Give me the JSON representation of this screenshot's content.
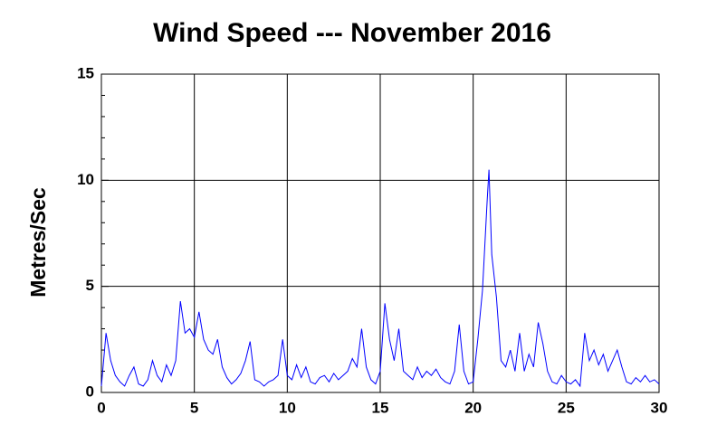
{
  "chart_data": {
    "type": "line",
    "title": "Wind Speed --- November 2016",
    "ylabel": "Metres/Sec",
    "x": [
      0,
      0.25,
      0.5,
      0.75,
      1,
      1.25,
      1.5,
      1.75,
      2,
      2.25,
      2.5,
      2.75,
      3,
      3.25,
      3.5,
      3.75,
      4,
      4.25,
      4.5,
      4.75,
      5,
      5.25,
      5.5,
      5.75,
      6,
      6.25,
      6.5,
      6.75,
      7,
      7.25,
      7.5,
      7.75,
      8,
      8.25,
      8.5,
      8.75,
      9,
      9.25,
      9.5,
      9.75,
      10,
      10.25,
      10.5,
      10.75,
      11,
      11.25,
      11.5,
      11.75,
      12,
      12.25,
      12.5,
      12.75,
      13,
      13.25,
      13.5,
      13.75,
      14,
      14.25,
      14.5,
      14.75,
      15,
      15.25,
      15.5,
      15.75,
      16,
      16.25,
      16.5,
      16.75,
      17,
      17.25,
      17.5,
      17.75,
      18,
      18.25,
      18.5,
      18.75,
      19,
      19.25,
      19.5,
      19.75,
      20,
      20.25,
      20.5,
      20.75,
      20.85,
      21,
      21.25,
      21.5,
      21.75,
      22,
      22.25,
      22.5,
      22.75,
      23,
      23.25,
      23.5,
      23.75,
      24,
      24.25,
      24.5,
      24.75,
      25,
      25.25,
      25.5,
      25.75,
      26,
      26.25,
      26.5,
      26.75,
      27,
      27.25,
      27.5,
      27.75,
      28,
      28.25,
      28.5,
      28.75,
      29,
      29.25,
      29.5,
      29.75,
      30
    ],
    "series": [
      {
        "name": "Wind Speed",
        "color": "#0000ff",
        "values": [
          0.3,
          2.8,
          1.5,
          0.8,
          0.5,
          0.3,
          0.8,
          1.2,
          0.4,
          0.3,
          0.6,
          1.5,
          0.8,
          0.5,
          1.3,
          0.8,
          1.5,
          4.3,
          2.8,
          3.0,
          2.6,
          3.8,
          2.5,
          2.0,
          1.8,
          2.5,
          1.2,
          0.7,
          0.4,
          0.6,
          0.9,
          1.5,
          2.4,
          0.6,
          0.5,
          0.3,
          0.5,
          0.6,
          0.8,
          2.5,
          0.8,
          0.6,
          1.3,
          0.7,
          1.2,
          0.5,
          0.4,
          0.7,
          0.8,
          0.5,
          0.9,
          0.6,
          0.8,
          1.0,
          1.6,
          1.2,
          3.0,
          1.2,
          0.6,
          0.4,
          1.0,
          4.2,
          2.5,
          1.5,
          3.0,
          1.0,
          0.8,
          0.6,
          1.2,
          0.7,
          1.0,
          0.8,
          1.1,
          0.7,
          0.5,
          0.4,
          1.0,
          3.2,
          1.0,
          0.4,
          0.5,
          2.5,
          4.8,
          9.0,
          10.5,
          6.5,
          4.5,
          1.5,
          1.2,
          2.0,
          1.0,
          2.8,
          1.0,
          1.8,
          1.2,
          3.3,
          2.3,
          1.0,
          0.5,
          0.4,
          0.8,
          0.5,
          0.4,
          0.6,
          0.3,
          2.8,
          1.5,
          2.0,
          1.3,
          1.8,
          1.0,
          1.5,
          2.0,
          1.2,
          0.5,
          0.4,
          0.7,
          0.5,
          0.8,
          0.5,
          0.6,
          0.4
        ]
      }
    ],
    "xlim": [
      0,
      30
    ],
    "xticks": [
      0,
      5,
      10,
      15,
      20,
      25,
      30
    ],
    "ylim": [
      0,
      15
    ],
    "yticks": [
      0,
      5,
      10,
      15
    ],
    "yminorticks": [
      1,
      2,
      3,
      4,
      6,
      7,
      8,
      9,
      11,
      12,
      13,
      14
    ],
    "grid": true
  }
}
